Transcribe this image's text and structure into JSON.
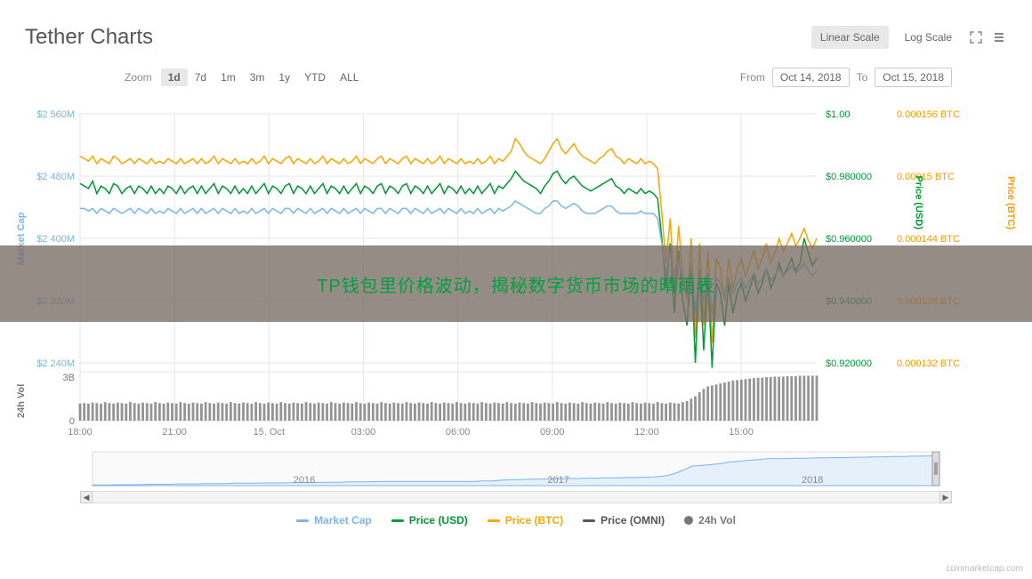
{
  "title": "Tether Charts",
  "scale": {
    "linear": "Linear Scale",
    "log": "Log Scale",
    "active": "linear"
  },
  "zoom": {
    "label": "Zoom",
    "options": [
      "1d",
      "7d",
      "1m",
      "3m",
      "1y",
      "YTD",
      "ALL"
    ],
    "active": "1d"
  },
  "dateRange": {
    "fromLabel": "From",
    "from": "Oct 14, 2018",
    "toLabel": "To",
    "to": "Oct 15, 2018"
  },
  "axes": {
    "marketCap": {
      "label": "Market Cap",
      "ticks": [
        "$2 560M",
        "$2 480M",
        "$2 400M",
        "$2 320M",
        "$2 240M"
      ],
      "color": "#7cb5ec"
    },
    "usd": {
      "label": "Price (USD)",
      "ticks": [
        "$1.00",
        "$0.980000",
        "$0.960000",
        "$0.940000",
        "$0.920000"
      ],
      "color": "#009933"
    },
    "btc": {
      "label": "Price (BTC)",
      "ticks": [
        "0.000156 BTC",
        "0.00015 BTC",
        "0.000144 BTC",
        "0.000138 BTC",
        "0.000132 BTC"
      ],
      "color": "#ff9900"
    },
    "vol": {
      "label": "24h Vol",
      "ticks": [
        "3B",
        "0"
      ],
      "color": "#777777"
    },
    "x": {
      "ticks": [
        "18:00",
        "21:00",
        "15. Oct",
        "03:00",
        "06:00",
        "09:00",
        "12:00",
        "15:00"
      ]
    }
  },
  "colors": {
    "marketCap": "#7cb5ec",
    "usd": "#009933",
    "btc": "#ffa500",
    "vol": "#666666",
    "grid": "#e6e6e6",
    "bg": "#ffffff",
    "navigatorFill": "#e6f0fa",
    "navigatorLine": "#7cb5ec"
  },
  "series": {
    "btc": [
      0.83,
      0.82,
      0.81,
      0.83,
      0.8,
      0.82,
      0.81,
      0.8,
      0.83,
      0.82,
      0.8,
      0.81,
      0.82,
      0.8,
      0.82,
      0.81,
      0.8,
      0.82,
      0.8,
      0.81,
      0.8,
      0.82,
      0.81,
      0.8,
      0.82,
      0.8,
      0.81,
      0.82,
      0.8,
      0.82,
      0.8,
      0.81,
      0.83,
      0.8,
      0.82,
      0.81,
      0.8,
      0.82,
      0.8,
      0.81,
      0.8,
      0.82,
      0.8,
      0.81,
      0.83,
      0.8,
      0.82,
      0.81,
      0.8,
      0.82,
      0.83,
      0.8,
      0.82,
      0.81,
      0.8,
      0.82,
      0.8,
      0.81,
      0.83,
      0.8,
      0.82,
      0.81,
      0.8,
      0.82,
      0.8,
      0.81,
      0.83,
      0.8,
      0.82,
      0.81,
      0.8,
      0.82,
      0.83,
      0.8,
      0.82,
      0.81,
      0.8,
      0.82,
      0.83,
      0.8,
      0.82,
      0.81,
      0.8,
      0.82,
      0.8,
      0.81,
      0.83,
      0.8,
      0.82,
      0.81,
      0.8,
      0.82,
      0.8,
      0.81,
      0.8,
      0.82,
      0.8,
      0.81,
      0.83,
      0.8,
      0.82,
      0.81,
      0.83,
      0.85,
      0.9,
      0.88,
      0.85,
      0.83,
      0.82,
      0.81,
      0.8,
      0.82,
      0.85,
      0.88,
      0.9,
      0.86,
      0.84,
      0.86,
      0.88,
      0.85,
      0.83,
      0.82,
      0.81,
      0.8,
      0.82,
      0.83,
      0.85,
      0.86,
      0.83,
      0.82,
      0.8,
      0.82,
      0.81,
      0.8,
      0.82,
      0.8,
      0.81,
      0.8,
      0.78,
      0.6,
      0.4,
      0.58,
      0.3,
      0.55,
      0.35,
      0.25,
      0.5,
      0.1,
      0.48,
      0.15,
      0.45,
      0.08,
      0.42,
      0.38,
      0.25,
      0.42,
      0.3,
      0.38,
      0.42,
      0.35,
      0.4,
      0.45,
      0.38,
      0.42,
      0.48,
      0.4,
      0.44,
      0.5,
      0.45,
      0.48,
      0.52,
      0.47,
      0.5,
      0.54,
      0.49,
      0.46,
      0.5
    ],
    "usd": [
      0.72,
      0.71,
      0.7,
      0.73,
      0.68,
      0.71,
      0.7,
      0.68,
      0.72,
      0.71,
      0.68,
      0.7,
      0.71,
      0.68,
      0.71,
      0.7,
      0.68,
      0.71,
      0.68,
      0.7,
      0.68,
      0.71,
      0.7,
      0.68,
      0.71,
      0.68,
      0.7,
      0.71,
      0.68,
      0.71,
      0.68,
      0.7,
      0.72,
      0.68,
      0.71,
      0.7,
      0.68,
      0.71,
      0.68,
      0.7,
      0.68,
      0.71,
      0.68,
      0.7,
      0.72,
      0.68,
      0.71,
      0.7,
      0.68,
      0.71,
      0.72,
      0.68,
      0.71,
      0.7,
      0.68,
      0.71,
      0.68,
      0.7,
      0.72,
      0.68,
      0.71,
      0.7,
      0.68,
      0.71,
      0.68,
      0.7,
      0.72,
      0.68,
      0.71,
      0.7,
      0.68,
      0.71,
      0.72,
      0.68,
      0.71,
      0.7,
      0.68,
      0.71,
      0.72,
      0.68,
      0.71,
      0.7,
      0.68,
      0.71,
      0.68,
      0.7,
      0.72,
      0.68,
      0.71,
      0.7,
      0.68,
      0.71,
      0.68,
      0.7,
      0.68,
      0.71,
      0.68,
      0.7,
      0.72,
      0.68,
      0.71,
      0.7,
      0.72,
      0.74,
      0.77,
      0.75,
      0.73,
      0.72,
      0.71,
      0.7,
      0.68,
      0.71,
      0.73,
      0.76,
      0.77,
      0.74,
      0.72,
      0.74,
      0.75,
      0.73,
      0.71,
      0.7,
      0.69,
      0.7,
      0.71,
      0.72,
      0.73,
      0.74,
      0.71,
      0.7,
      0.68,
      0.7,
      0.69,
      0.68,
      0.7,
      0.68,
      0.69,
      0.68,
      0.66,
      0.5,
      0.3,
      0.48,
      0.2,
      0.45,
      0.25,
      0.15,
      0.4,
      0.0,
      0.38,
      0.05,
      0.35,
      -0.02,
      0.32,
      0.28,
      0.15,
      0.32,
      0.2,
      0.28,
      0.32,
      0.25,
      0.3,
      0.35,
      0.28,
      0.32,
      0.38,
      0.3,
      0.34,
      0.4,
      0.35,
      0.38,
      0.42,
      0.37,
      0.4,
      0.5,
      0.44,
      0.39,
      0.42
    ],
    "mc": [
      0.62,
      0.62,
      0.61,
      0.62,
      0.6,
      0.62,
      0.61,
      0.6,
      0.62,
      0.61,
      0.6,
      0.61,
      0.62,
      0.6,
      0.62,
      0.61,
      0.6,
      0.62,
      0.6,
      0.61,
      0.6,
      0.62,
      0.61,
      0.6,
      0.62,
      0.6,
      0.61,
      0.62,
      0.6,
      0.62,
      0.6,
      0.61,
      0.62,
      0.6,
      0.62,
      0.61,
      0.6,
      0.62,
      0.6,
      0.61,
      0.6,
      0.62,
      0.6,
      0.61,
      0.62,
      0.6,
      0.62,
      0.61,
      0.6,
      0.62,
      0.62,
      0.6,
      0.62,
      0.61,
      0.6,
      0.62,
      0.6,
      0.61,
      0.62,
      0.6,
      0.62,
      0.61,
      0.6,
      0.62,
      0.6,
      0.61,
      0.62,
      0.6,
      0.62,
      0.61,
      0.6,
      0.62,
      0.62,
      0.6,
      0.62,
      0.61,
      0.6,
      0.62,
      0.62,
      0.6,
      0.62,
      0.61,
      0.6,
      0.62,
      0.6,
      0.61,
      0.62,
      0.6,
      0.62,
      0.61,
      0.6,
      0.62,
      0.6,
      0.61,
      0.6,
      0.62,
      0.6,
      0.61,
      0.62,
      0.6,
      0.62,
      0.61,
      0.62,
      0.63,
      0.65,
      0.64,
      0.63,
      0.62,
      0.61,
      0.6,
      0.6,
      0.62,
      0.63,
      0.65,
      0.65,
      0.63,
      0.62,
      0.63,
      0.64,
      0.63,
      0.61,
      0.6,
      0.6,
      0.6,
      0.61,
      0.62,
      0.63,
      0.63,
      0.61,
      0.6,
      0.6,
      0.6,
      0.6,
      0.6,
      0.61,
      0.6,
      0.6,
      0.6,
      0.58,
      0.48,
      0.35,
      0.45,
      0.3,
      0.42,
      0.32,
      0.28,
      0.4,
      0.2,
      0.38,
      0.25,
      0.36,
      0.2,
      0.34,
      0.32,
      0.26,
      0.34,
      0.28,
      0.32,
      0.34,
      0.3,
      0.33,
      0.36,
      0.32,
      0.34,
      0.38,
      0.33,
      0.35,
      0.38,
      0.35,
      0.37,
      0.39,
      0.36,
      0.38,
      0.4,
      0.37,
      0.35,
      0.37
    ],
    "vol": [
      0.35,
      0.36,
      0.35,
      0.37,
      0.36,
      0.35,
      0.38,
      0.36,
      0.35,
      0.37,
      0.36,
      0.35,
      0.38,
      0.36,
      0.35,
      0.37,
      0.36,
      0.35,
      0.38,
      0.36,
      0.35,
      0.37,
      0.36,
      0.35,
      0.38,
      0.36,
      0.35,
      0.37,
      0.36,
      0.35,
      0.38,
      0.36,
      0.35,
      0.37,
      0.36,
      0.35,
      0.38,
      0.36,
      0.35,
      0.37,
      0.36,
      0.35,
      0.38,
      0.36,
      0.35,
      0.37,
      0.36,
      0.35,
      0.38,
      0.36,
      0.35,
      0.37,
      0.36,
      0.35,
      0.38,
      0.36,
      0.35,
      0.37,
      0.36,
      0.35,
      0.38,
      0.36,
      0.35,
      0.37,
      0.36,
      0.35,
      0.38,
      0.36,
      0.35,
      0.37,
      0.36,
      0.35,
      0.38,
      0.36,
      0.35,
      0.37,
      0.36,
      0.35,
      0.38,
      0.36,
      0.35,
      0.37,
      0.36,
      0.35,
      0.38,
      0.36,
      0.35,
      0.37,
      0.36,
      0.35,
      0.38,
      0.36,
      0.35,
      0.37,
      0.36,
      0.35,
      0.38,
      0.36,
      0.35,
      0.37,
      0.36,
      0.35,
      0.38,
      0.36,
      0.35,
      0.37,
      0.36,
      0.35,
      0.38,
      0.36,
      0.35,
      0.37,
      0.36,
      0.35,
      0.38,
      0.36,
      0.35,
      0.37,
      0.36,
      0.35,
      0.38,
      0.36,
      0.35,
      0.37,
      0.36,
      0.35,
      0.38,
      0.36,
      0.35,
      0.37,
      0.36,
      0.35,
      0.38,
      0.36,
      0.35,
      0.37,
      0.36,
      0.35,
      0.38,
      0.36,
      0.35,
      0.37,
      0.36,
      0.35,
      0.38,
      0.4,
      0.45,
      0.5,
      0.58,
      0.65,
      0.7,
      0.72,
      0.74,
      0.76,
      0.78,
      0.8,
      0.82,
      0.83,
      0.84,
      0.85,
      0.86,
      0.87,
      0.88,
      0.88,
      0.89,
      0.89,
      0.9,
      0.9,
      0.9,
      0.91,
      0.91,
      0.91,
      0.92,
      0.92,
      0.92,
      0.92,
      0.92
    ]
  },
  "navigator": {
    "years": [
      "2016",
      "2017",
      "2018"
    ],
    "data": [
      0.02,
      0.02,
      0.02,
      0.03,
      0.03,
      0.03,
      0.04,
      0.04,
      0.04,
      0.05,
      0.05,
      0.05,
      0.06,
      0.06,
      0.06,
      0.07,
      0.07,
      0.07,
      0.08,
      0.08,
      0.08,
      0.09,
      0.09,
      0.09,
      0.1,
      0.1,
      0.1,
      0.11,
      0.11,
      0.11,
      0.12,
      0.12,
      0.12,
      0.12,
      0.12,
      0.12,
      0.12,
      0.12,
      0.12,
      0.12,
      0.12,
      0.14,
      0.14,
      0.16,
      0.18,
      0.18,
      0.19,
      0.19,
      0.2,
      0.2,
      0.21,
      0.21,
      0.22,
      0.22,
      0.23,
      0.23,
      0.24,
      0.24,
      0.25,
      0.26,
      0.28,
      0.34,
      0.45,
      0.58,
      0.6,
      0.62,
      0.65,
      0.7,
      0.72,
      0.75,
      0.77,
      0.8,
      0.8,
      0.8,
      0.81,
      0.81,
      0.82,
      0.82,
      0.83,
      0.83,
      0.84,
      0.84,
      0.85,
      0.85,
      0.86,
      0.86,
      0.87,
      0.87,
      0.88,
      0.88
    ]
  },
  "legend": {
    "items": [
      {
        "label": "Market Cap",
        "color": "#7cb5ec",
        "type": "line"
      },
      {
        "label": "Price (USD)",
        "color": "#009933",
        "type": "line"
      },
      {
        "label": "Price (BTC)",
        "color": "#ffa500",
        "type": "line"
      },
      {
        "label": "Price (OMNI)",
        "color": "#555555",
        "type": "line"
      },
      {
        "label": "24h Vol",
        "color": "#777777",
        "type": "dot"
      }
    ]
  },
  "overlay": "TP钱包里价格波动，揭秘数字货币市场的晴雨表",
  "watermark": "coinmarketcap.com"
}
